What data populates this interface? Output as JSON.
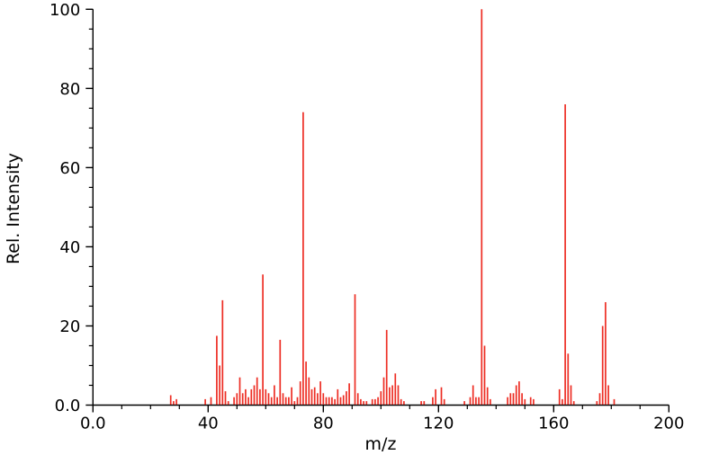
{
  "chart_data": {
    "type": "bar",
    "subtype": "mass-spectrum-stick-plot",
    "title": "",
    "xlabel": "m/z",
    "ylabel": "Rel. Intensity",
    "xlim": [
      0,
      200
    ],
    "ylim": [
      0,
      100
    ],
    "grid": false,
    "legend": "none",
    "bar_color": "#ed2d24",
    "axis_color": "#000000",
    "background_color": "#ffffff",
    "x_ticks": [
      {
        "v": 0,
        "label": "0.0"
      },
      {
        "v": 40,
        "label": "40"
      },
      {
        "v": 80,
        "label": "80"
      },
      {
        "v": 120,
        "label": "120"
      },
      {
        "v": 160,
        "label": "160"
      },
      {
        "v": 200,
        "label": "200"
      }
    ],
    "y_ticks": [
      {
        "v": 0,
        "label": "0.0"
      },
      {
        "v": 20,
        "label": "20"
      },
      {
        "v": 40,
        "label": "40"
      },
      {
        "v": 60,
        "label": "60"
      },
      {
        "v": 80,
        "label": "80"
      },
      {
        "v": 100,
        "label": "100"
      }
    ],
    "x_minor_step": 10,
    "y_minor_step": 5,
    "peaks": [
      [
        27,
        2.5
      ],
      [
        28,
        1
      ],
      [
        29,
        1.5
      ],
      [
        39,
        1.5
      ],
      [
        41,
        2
      ],
      [
        43,
        17.5
      ],
      [
        44,
        10
      ],
      [
        45,
        26.5
      ],
      [
        46,
        3.5
      ],
      [
        47,
        1
      ],
      [
        49,
        2
      ],
      [
        50,
        3
      ],
      [
        51,
        7
      ],
      [
        52,
        3
      ],
      [
        53,
        4
      ],
      [
        54,
        2
      ],
      [
        55,
        4
      ],
      [
        56,
        5
      ],
      [
        57,
        7
      ],
      [
        58,
        4
      ],
      [
        59,
        33
      ],
      [
        60,
        4
      ],
      [
        61,
        3
      ],
      [
        62,
        2
      ],
      [
        63,
        5
      ],
      [
        64,
        2
      ],
      [
        65,
        16.5
      ],
      [
        66,
        3
      ],
      [
        67,
        2
      ],
      [
        68,
        2
      ],
      [
        69,
        4.5
      ],
      [
        70,
        1
      ],
      [
        71,
        2
      ],
      [
        72,
        6
      ],
      [
        73,
        74
      ],
      [
        74,
        11
      ],
      [
        75,
        7
      ],
      [
        76,
        4
      ],
      [
        77,
        4.5
      ],
      [
        78,
        3
      ],
      [
        79,
        6
      ],
      [
        80,
        3
      ],
      [
        81,
        2
      ],
      [
        82,
        2
      ],
      [
        83,
        2
      ],
      [
        84,
        1.5
      ],
      [
        85,
        4
      ],
      [
        86,
        2
      ],
      [
        87,
        2.5
      ],
      [
        88,
        3.5
      ],
      [
        89,
        5.5
      ],
      [
        91,
        28
      ],
      [
        92,
        3
      ],
      [
        93,
        1.5
      ],
      [
        94,
        1
      ],
      [
        95,
        1
      ],
      [
        97,
        1.5
      ],
      [
        98,
        1.5
      ],
      [
        99,
        2
      ],
      [
        100,
        3.5
      ],
      [
        101,
        7
      ],
      [
        102,
        19
      ],
      [
        103,
        4.5
      ],
      [
        104,
        5
      ],
      [
        105,
        8
      ],
      [
        106,
        5
      ],
      [
        107,
        1.5
      ],
      [
        108,
        1
      ],
      [
        114,
        1
      ],
      [
        115,
        1
      ],
      [
        118,
        2
      ],
      [
        119,
        4
      ],
      [
        121,
        4.5
      ],
      [
        122,
        1.5
      ],
      [
        129,
        1
      ],
      [
        131,
        2
      ],
      [
        132,
        5
      ],
      [
        133,
        2
      ],
      [
        134,
        2
      ],
      [
        135,
        100
      ],
      [
        136,
        15
      ],
      [
        137,
        4.5
      ],
      [
        138,
        1.5
      ],
      [
        144,
        2
      ],
      [
        145,
        3
      ],
      [
        146,
        3
      ],
      [
        147,
        5
      ],
      [
        148,
        6
      ],
      [
        149,
        3
      ],
      [
        150,
        1.5
      ],
      [
        152,
        2
      ],
      [
        153,
        1.5
      ],
      [
        162,
        4
      ],
      [
        163,
        1.5
      ],
      [
        164,
        76
      ],
      [
        165,
        13
      ],
      [
        166,
        5
      ],
      [
        167,
        1
      ],
      [
        175,
        1
      ],
      [
        176,
        3
      ],
      [
        177,
        20
      ],
      [
        178,
        26
      ],
      [
        179,
        5
      ],
      [
        181,
        1.5
      ]
    ]
  }
}
